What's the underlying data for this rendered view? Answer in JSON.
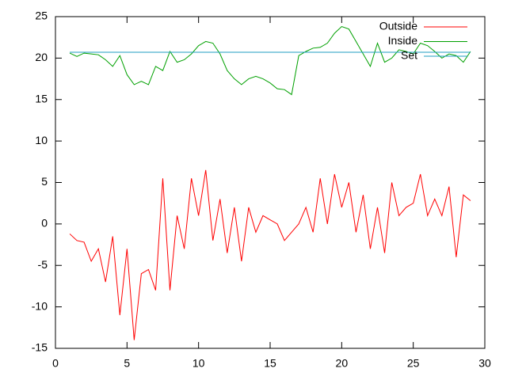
{
  "chart_data": {
    "type": "line",
    "x": [
      1,
      1.5,
      2,
      2.5,
      3,
      3.5,
      4,
      4.5,
      5,
      5.5,
      6,
      6.5,
      7,
      7.5,
      8,
      8.5,
      9,
      9.5,
      10,
      10.5,
      11,
      11.5,
      12,
      12.5,
      13,
      13.5,
      14,
      14.5,
      15,
      15.5,
      16,
      16.5,
      17,
      17.5,
      18,
      18.5,
      19,
      19.5,
      20,
      20.5,
      21,
      21.5,
      22,
      22.5,
      23,
      23.5,
      24,
      24.5,
      25,
      25.5,
      26,
      26.5,
      27,
      27.5,
      28,
      28.5,
      29
    ],
    "series": [
      {
        "name": "Outside",
        "color": "#ff0000",
        "values": [
          -1.2,
          -2,
          -2.2,
          -4.5,
          -3,
          -7,
          -1.5,
          -11,
          -3,
          -14,
          -6,
          -5.5,
          -8,
          5.5,
          -8,
          1,
          -3,
          5.5,
          1,
          6.5,
          -2,
          3,
          -3.5,
          2,
          -4.5,
          2,
          -1,
          1,
          0.5,
          0,
          -2,
          -1,
          0,
          2,
          -1,
          5.5,
          0,
          6,
          2,
          5,
          -1,
          3.5,
          -3,
          2,
          -3.5,
          5,
          1,
          2,
          2.5,
          6,
          1,
          3,
          1,
          4.5,
          -4,
          3.5,
          2.8
        ]
      },
      {
        "name": "Inside",
        "color": "#00a000",
        "values": [
          20.6,
          20.2,
          20.6,
          20.5,
          20.4,
          19.8,
          19,
          20.3,
          18,
          16.8,
          17.2,
          16.8,
          19,
          18.5,
          20.8,
          19.5,
          19.8,
          20.5,
          21.5,
          22,
          21.8,
          20.5,
          18.5,
          17.5,
          16.8,
          17.5,
          17.8,
          17.5,
          17,
          16.3,
          16.2,
          15.6,
          20.3,
          20.8,
          21.2,
          21.3,
          21.8,
          23,
          23.8,
          23.5,
          22,
          20.5,
          19,
          21.8,
          19.5,
          20,
          21,
          20.8,
          20.5,
          21.8,
          21.5,
          20.8,
          20,
          20.5,
          20.3,
          19.5,
          20.8
        ]
      },
      {
        "name": "Set",
        "color": "#1e9ec0",
        "x": [
          1,
          29
        ],
        "values": [
          20.7,
          20.7
        ]
      }
    ],
    "xlim": [
      0,
      30
    ],
    "xticks": [
      0,
      5,
      10,
      15,
      20,
      25,
      30
    ],
    "ylim": [
      -15,
      25
    ],
    "yticks": [
      -15,
      -10,
      -5,
      0,
      5,
      10,
      15,
      20,
      25
    ],
    "legend": "top-right"
  }
}
